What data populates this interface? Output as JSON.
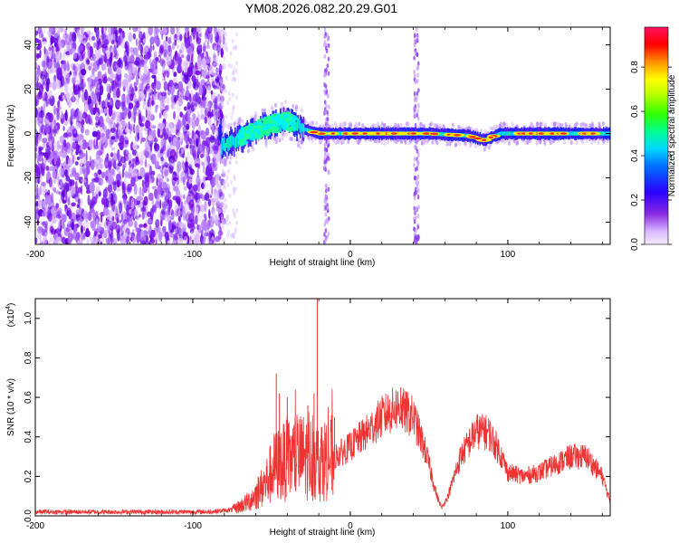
{
  "title": "YM08.2026.082.20.29.G01",
  "chart_data": [
    {
      "type": "heatmap",
      "name": "spectrogram",
      "xlabel": "Height of straight line (km)",
      "ylabel": "Frequency (Hz)",
      "xlim": [
        -200,
        165
      ],
      "ylim": [
        -50,
        48
      ],
      "xticks": [
        -200,
        -100,
        0,
        100
      ],
      "yticks": [
        -40,
        -20,
        0,
        20,
        40
      ],
      "x_tick_labels": [
        "-200",
        "-100",
        "0",
        "100"
      ],
      "y_tick_labels": [
        "-40",
        "-20",
        "0",
        "20",
        "40"
      ],
      "colorbar": {
        "label": "Normalized spectral amplitude",
        "range": [
          0,
          0.98
        ],
        "ticks": [
          0.0,
          0.2,
          0.4,
          0.6,
          0.8
        ],
        "tick_labels": [
          "0.0",
          "0.2",
          "0.4",
          "0.6",
          "0.8"
        ],
        "colors": [
          "#f2e6ff",
          "#c9a0ff",
          "#7f00ff",
          "#1a00ff",
          "#0080ff",
          "#00e5ff",
          "#00ff60",
          "#8cff00",
          "#ffff00",
          "#ff8c00",
          "#ff0000",
          "#ff00ff"
        ]
      },
      "features": {
        "noise_region_x": [
          -200,
          -85
        ],
        "signal_track": [
          {
            "x": -82,
            "y": -6
          },
          {
            "x": -75,
            "y": -4
          },
          {
            "x": -65,
            "y": 0
          },
          {
            "x": -55,
            "y": 3
          },
          {
            "x": -45,
            "y": 5
          },
          {
            "x": -40,
            "y": 6
          },
          {
            "x": -30,
            "y": 2
          },
          {
            "x": -20,
            "y": 0
          },
          {
            "x": 0,
            "y": 0
          },
          {
            "x": 50,
            "y": 0
          },
          {
            "x": 75,
            "y": -1
          },
          {
            "x": 85,
            "y": -3
          },
          {
            "x": 95,
            "y": 0
          },
          {
            "x": 165,
            "y": 0
          }
        ],
        "vertical_streaks_x": [
          -15,
          42
        ]
      }
    },
    {
      "type": "line",
      "name": "snr",
      "xlabel": "Height of straight line (km)",
      "ylabel": "SNR (10 * v/v)",
      "y_scale_label": "(x10",
      "y_scale_exponent": "4",
      "y_scale_close": ")",
      "xlim": [
        -200,
        165
      ],
      "ylim": [
        0,
        1.1
      ],
      "xticks": [
        -200,
        -100,
        0,
        100
      ],
      "yticks": [
        0.0,
        0.2,
        0.4,
        0.6,
        0.8,
        1.0
      ],
      "x_tick_labels": [
        "-200",
        "-100",
        "0",
        "100"
      ],
      "y_tick_labels": [
        "0.0",
        "0.2",
        "0.4",
        "0.6",
        "0.8",
        "1.0"
      ],
      "series": [
        {
          "name": "SNR",
          "color": "#ee3333",
          "envelope": [
            {
              "x": -200,
              "y": 0.02
            },
            {
              "x": -90,
              "y": 0.02
            },
            {
              "x": -75,
              "y": 0.03
            },
            {
              "x": -65,
              "y": 0.07
            },
            {
              "x": -55,
              "y": 0.15
            },
            {
              "x": -48,
              "y": 0.25
            },
            {
              "x": -40,
              "y": 0.28
            },
            {
              "x": -30,
              "y": 0.3
            },
            {
              "x": -20,
              "y": 0.28
            },
            {
              "x": -10,
              "y": 0.3
            },
            {
              "x": 0,
              "y": 0.35
            },
            {
              "x": 10,
              "y": 0.42
            },
            {
              "x": 20,
              "y": 0.5
            },
            {
              "x": 30,
              "y": 0.55
            },
            {
              "x": 40,
              "y": 0.5
            },
            {
              "x": 48,
              "y": 0.32
            },
            {
              "x": 55,
              "y": 0.1
            },
            {
              "x": 58,
              "y": 0.04
            },
            {
              "x": 62,
              "y": 0.1
            },
            {
              "x": 70,
              "y": 0.3
            },
            {
              "x": 80,
              "y": 0.43
            },
            {
              "x": 88,
              "y": 0.42
            },
            {
              "x": 95,
              "y": 0.32
            },
            {
              "x": 100,
              "y": 0.22
            },
            {
              "x": 110,
              "y": 0.2
            },
            {
              "x": 120,
              "y": 0.22
            },
            {
              "x": 130,
              "y": 0.26
            },
            {
              "x": 140,
              "y": 0.3
            },
            {
              "x": 150,
              "y": 0.3
            },
            {
              "x": 160,
              "y": 0.2
            },
            {
              "x": 165,
              "y": 0.07
            }
          ],
          "spikes": [
            {
              "x": -47,
              "y": 0.72
            },
            {
              "x": -45,
              "y": 0.62
            },
            {
              "x": -40,
              "y": 0.6
            },
            {
              "x": -35,
              "y": 0.5
            },
            {
              "x": -27,
              "y": 0.56
            },
            {
              "x": -23,
              "y": 0.62
            },
            {
              "x": -21,
              "y": 1.1
            },
            {
              "x": -18,
              "y": 0.45
            },
            {
              "x": -10,
              "y": 0.5
            },
            {
              "x": 32,
              "y": 0.65
            },
            {
              "x": 85,
              "y": 0.5
            }
          ]
        }
      ]
    }
  ]
}
